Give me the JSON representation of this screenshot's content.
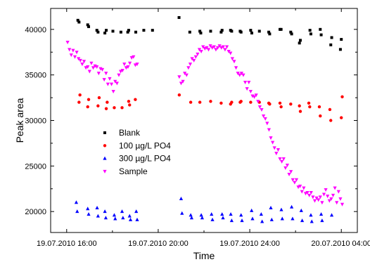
{
  "chart_data": {
    "type": "scatter",
    "title": "",
    "xlabel": "Time",
    "ylabel": "Peak area",
    "xlim": [
      -0.7,
      12.7
    ],
    "ylim": [
      17700,
      42300
    ],
    "x_unit": "hours from 19.07.2010 16:00",
    "x_ticks": [
      {
        "value": 0,
        "label": "19.07.2010 16:00"
      },
      {
        "value": 4,
        "label": "19.07.2010 20:00"
      },
      {
        "value": 8,
        "label": "19.07.2010 24:00"
      },
      {
        "value": 12,
        "label": "20.07.2010 04:00"
      }
    ],
    "y_ticks": [
      20000,
      25000,
      30000,
      35000,
      40000
    ],
    "legend_position": "center-left",
    "grid": false,
    "series": [
      {
        "name": "Blank",
        "color": "#000000",
        "marker": "square",
        "x": [
          0.49,
          0.54,
          0.92,
          0.96,
          1.32,
          1.37,
          1.67,
          1.73,
          2.02,
          2.37,
          2.67,
          2.71,
          3.02,
          3.37,
          3.75,
          4.91,
          5.38,
          5.82,
          5.86,
          6.29,
          6.75,
          6.79,
          7.16,
          7.21,
          7.58,
          7.62,
          8.04,
          8.09,
          8.42,
          8.83,
          8.87,
          9.32,
          9.37,
          9.79,
          9.83,
          10.17,
          10.21,
          10.63,
          10.67,
          11.08,
          11.12,
          11.54,
          11.58,
          11.96,
          12.0
        ],
        "y": [
          41000,
          40800,
          40500,
          40300,
          39900,
          39700,
          39600,
          39900,
          39800,
          39700,
          39700,
          39900,
          39700,
          39900,
          39900,
          41300,
          39700,
          39800,
          39600,
          39800,
          39700,
          39900,
          39900,
          39800,
          39800,
          39700,
          39900,
          39600,
          39800,
          39700,
          39500,
          40000,
          40000,
          39700,
          39500,
          38500,
          38800,
          39900,
          39500,
          40000,
          39400,
          38300,
          39100,
          37800,
          38900
        ]
      },
      {
        "name": "100 µg/L PO4",
        "color": "#ff0000",
        "marker": "circle",
        "x": [
          0.54,
          0.58,
          0.92,
          0.96,
          1.37,
          1.42,
          1.73,
          1.77,
          2.08,
          2.42,
          2.71,
          2.75,
          3.0,
          4.92,
          5.42,
          5.82,
          6.29,
          6.75,
          7.16,
          7.21,
          7.58,
          7.62,
          8.04,
          8.42,
          8.83,
          8.87,
          9.32,
          9.37,
          9.79,
          10.17,
          10.21,
          10.58,
          10.62,
          11.04,
          11.08,
          11.5,
          11.54,
          12.0,
          12.04
        ],
        "y": [
          32000,
          32800,
          31500,
          32300,
          31600,
          32500,
          31300,
          32000,
          31400,
          31400,
          32100,
          31700,
          32300,
          32800,
          32000,
          32000,
          32100,
          31900,
          31800,
          32000,
          32000,
          32100,
          32000,
          32000,
          31900,
          31800,
          31900,
          31500,
          31800,
          31600,
          31000,
          31900,
          31500,
          31500,
          30500,
          31200,
          30000,
          30300,
          32600
        ]
      },
      {
        "name": "300 µg/L PO4",
        "color": "#0000ff",
        "marker": "triangle-up",
        "x": [
          0.42,
          0.46,
          0.92,
          0.96,
          1.33,
          1.37,
          1.67,
          1.71,
          2.08,
          2.12,
          2.42,
          2.46,
          2.75,
          2.79,
          3.04,
          3.08,
          5.0,
          5.04,
          5.42,
          5.46,
          5.88,
          5.92,
          6.33,
          6.37,
          6.79,
          6.83,
          7.17,
          7.21,
          7.62,
          7.66,
          8.08,
          8.12,
          8.5,
          8.54,
          8.92,
          8.96,
          9.38,
          9.42,
          9.83,
          9.87,
          10.25,
          10.29,
          10.67,
          10.71,
          11.12,
          11.16,
          11.58
        ],
        "y": [
          21000,
          20000,
          20300,
          19700,
          20400,
          19500,
          20000,
          19300,
          19600,
          19200,
          20000,
          19300,
          19500,
          19100,
          20000,
          19100,
          21400,
          19800,
          19600,
          19300,
          19600,
          19300,
          19700,
          19100,
          19700,
          19300,
          19700,
          19000,
          19600,
          19000,
          20100,
          19200,
          19700,
          18900,
          20400,
          19100,
          20200,
          19200,
          20500,
          19200,
          20100,
          19000,
          19600,
          18900,
          19700,
          19000,
          19600
        ]
      },
      {
        "name": "Sample",
        "color": "#ff00ff",
        "marker": "triangle-down",
        "x": [
          0.04,
          0.12,
          0.2,
          0.28,
          0.36,
          0.44,
          0.52,
          0.6,
          0.68,
          0.76,
          0.84,
          0.92,
          1.0,
          1.08,
          1.16,
          1.24,
          1.32,
          1.4,
          1.48,
          1.56,
          1.64,
          1.72,
          1.8,
          1.88,
          1.96,
          2.04,
          2.12,
          2.2,
          2.28,
          2.36,
          2.44,
          2.52,
          2.6,
          2.68,
          2.76,
          2.84,
          2.92,
          3.0,
          3.08,
          4.92,
          5.0,
          5.08,
          5.16,
          5.24,
          5.32,
          5.4,
          5.48,
          5.56,
          5.64,
          5.72,
          5.8,
          5.88,
          5.96,
          6.04,
          6.12,
          6.2,
          6.28,
          6.36,
          6.44,
          6.52,
          6.6,
          6.68,
          6.76,
          6.84,
          6.92,
          7.0,
          7.08,
          7.16,
          7.24,
          7.32,
          7.4,
          7.48,
          7.56,
          7.64,
          7.72,
          7.8,
          7.88,
          7.96,
          8.04,
          8.12,
          8.2,
          8.28,
          8.36,
          8.44,
          8.52,
          8.6,
          8.68,
          8.76,
          8.84,
          8.92,
          9.0,
          9.08,
          9.16,
          9.24,
          9.32,
          9.4,
          9.48,
          9.56,
          9.64,
          9.72,
          9.8,
          9.88,
          9.96,
          10.04,
          10.12,
          10.2,
          10.28,
          10.36,
          10.44,
          10.52,
          10.6,
          10.68,
          10.76,
          10.84,
          10.92,
          11.0,
          11.08,
          11.16,
          11.24,
          11.32,
          11.4,
          11.48,
          11.56,
          11.64,
          11.72,
          11.8,
          11.88,
          11.96,
          12.04
        ],
        "y": [
          38600,
          37800,
          37200,
          37700,
          37000,
          37500,
          36800,
          36600,
          36200,
          36500,
          35800,
          35900,
          35400,
          36300,
          35800,
          36000,
          35900,
          35200,
          35700,
          35600,
          34500,
          35200,
          34000,
          34600,
          34000,
          33200,
          34300,
          34100,
          35000,
          35400,
          35500,
          36200,
          35800,
          35900,
          36300,
          36900,
          37000,
          36100,
          36200,
          34800,
          34100,
          34300,
          35200,
          35000,
          35800,
          36200,
          36800,
          36600,
          37000,
          37300,
          37800,
          37600,
          38100,
          37900,
          38000,
          37800,
          38200,
          38000,
          38100,
          37800,
          38000,
          38200,
          38000,
          38100,
          37800,
          38100,
          37600,
          37400,
          36800,
          36500,
          35800,
          35200,
          35000,
          35200,
          35000,
          34200,
          33500,
          34200,
          33200,
          32700,
          32600,
          32800,
          32100,
          31500,
          31200,
          30500,
          30200,
          29700,
          29000,
          28100,
          27600,
          27000,
          26400,
          26800,
          25800,
          25500,
          25800,
          24800,
          25100,
          24100,
          24400,
          23500,
          23200,
          23500,
          22700,
          22800,
          22200,
          22600,
          22000,
          22100,
          21800,
          22100,
          21600,
          21200,
          21500,
          21300,
          21600,
          21000,
          21900,
          22400,
          21700,
          21200,
          21400,
          21800,
          22600,
          21000,
          22200,
          21400,
          20800
        ]
      }
    ]
  }
}
